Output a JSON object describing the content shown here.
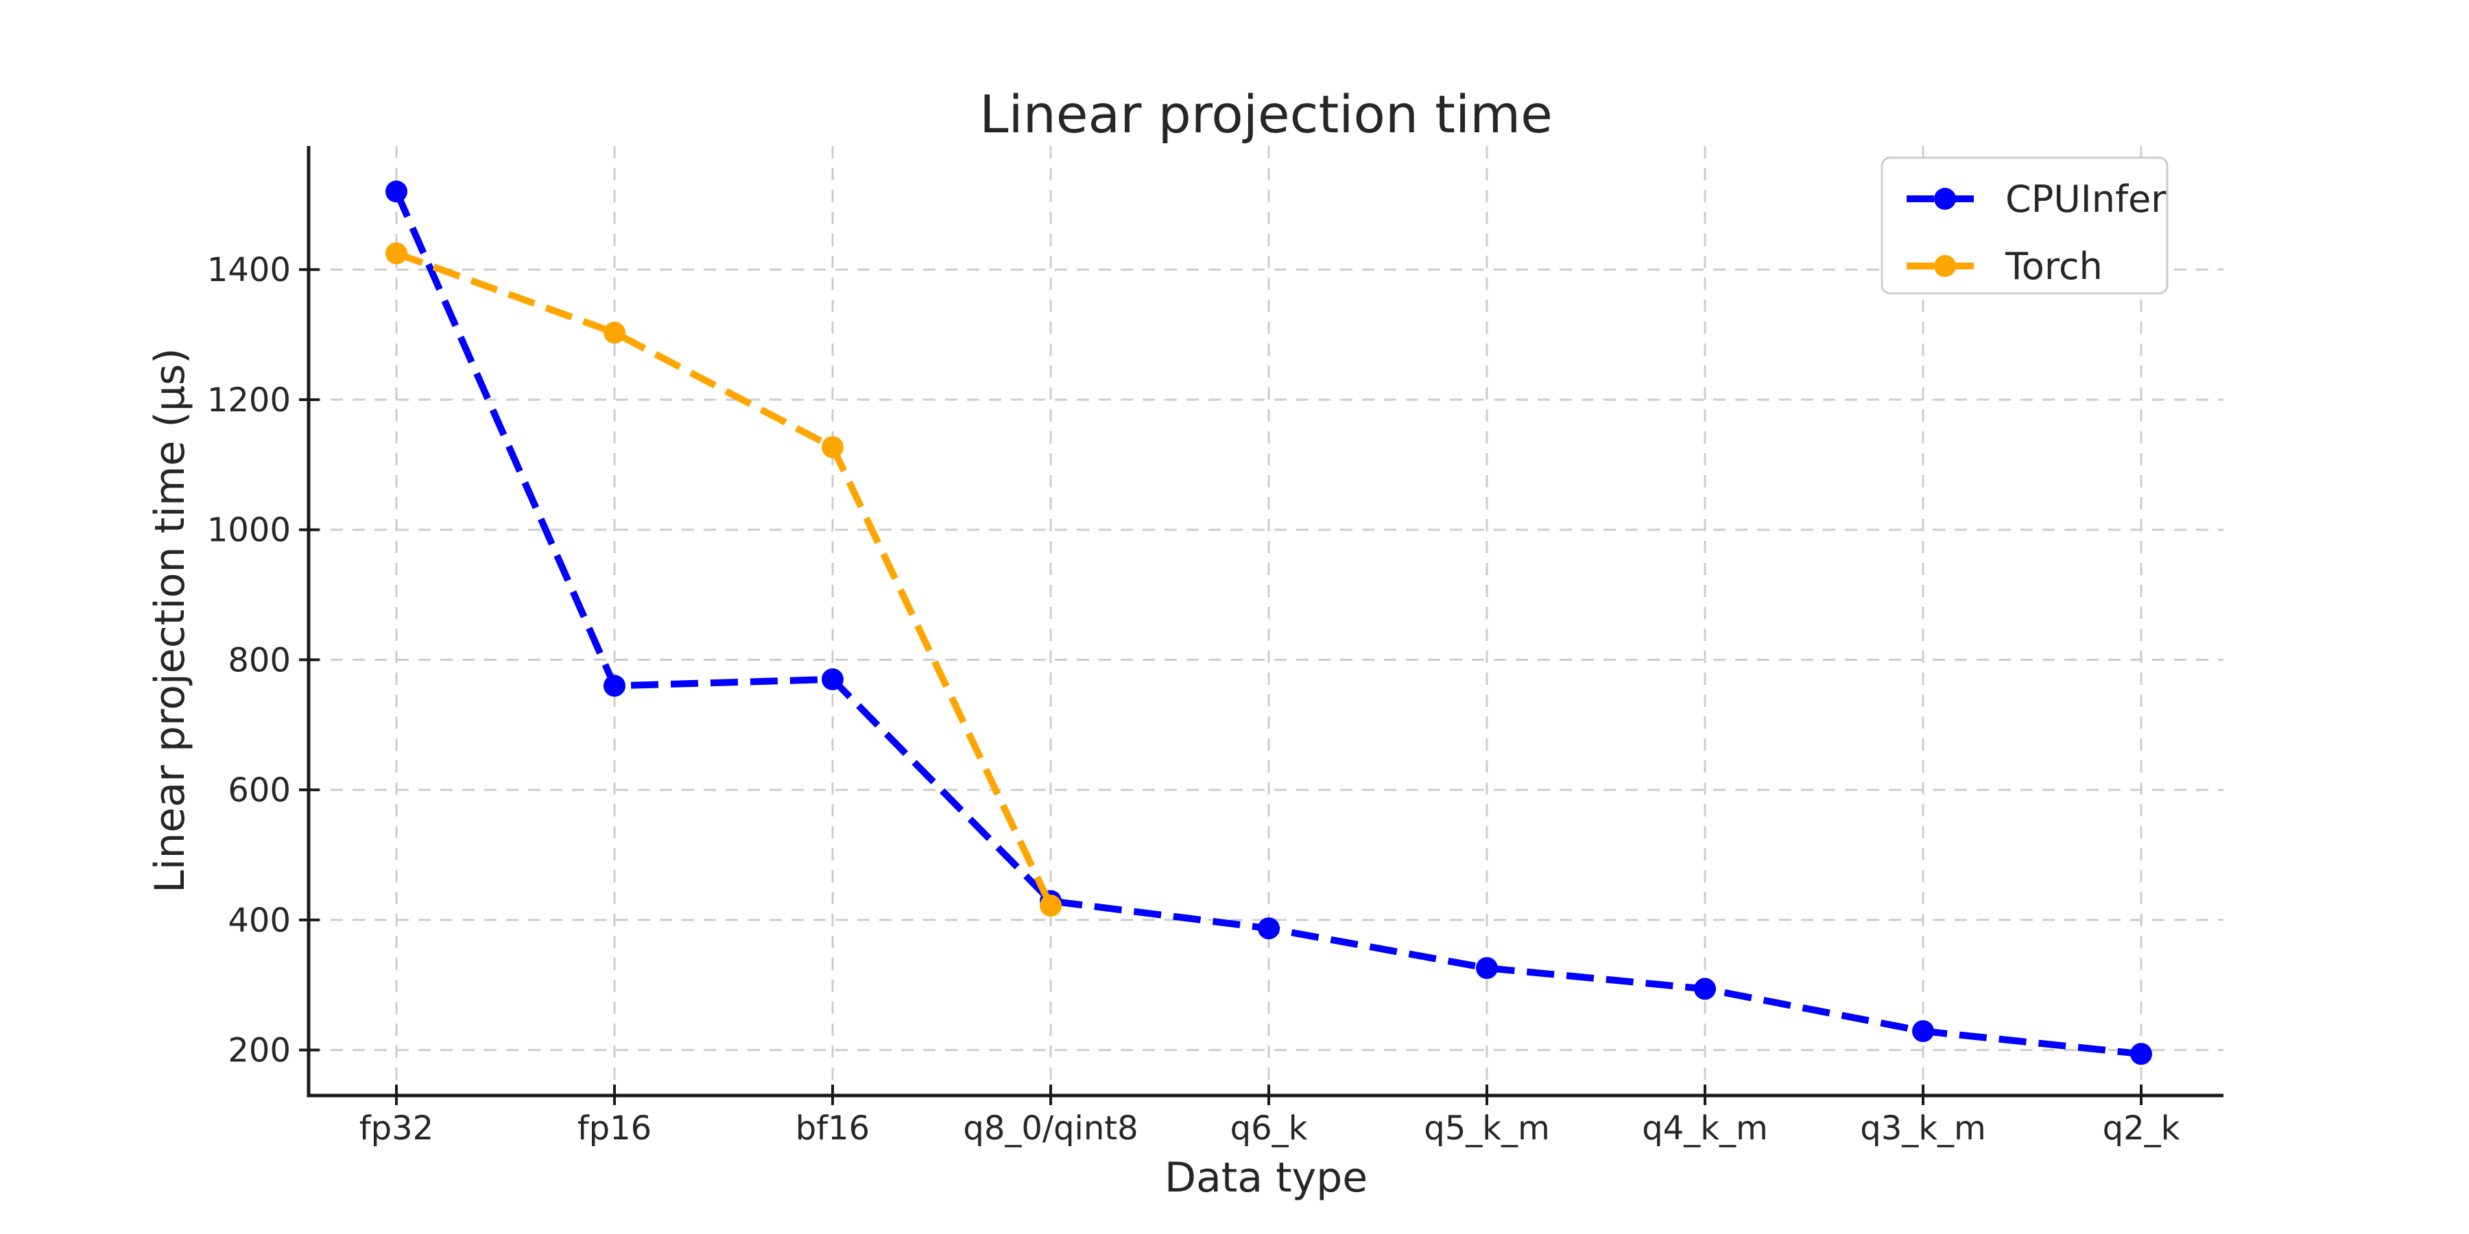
{
  "page": {
    "background": "#ffffff"
  },
  "chart_data": {
    "type": "line",
    "title": "Linear projection time",
    "xlabel": "Data type",
    "ylabel": "Linear projection time (μs)",
    "categories": [
      "fp32",
      "fp16",
      "bf16",
      "q8_0/qint8",
      "q6_k",
      "q5_k_m",
      "q4_k_m",
      "q3_k_m",
      "q2_k"
    ],
    "series": [
      {
        "name": "CPUInfer",
        "color": "#0000ff",
        "linestyle": "dashed",
        "marker": "circle",
        "values": [
          1520,
          760,
          770,
          429,
          387,
          326,
          294,
          229,
          194
        ]
      },
      {
        "name": "Torch",
        "color": "#ffa500",
        "linestyle": "dashed",
        "marker": "circle",
        "values": [
          1425,
          1303,
          1127,
          422,
          null,
          null,
          null,
          null,
          null
        ]
      }
    ],
    "yticks": [
      200,
      400,
      600,
      800,
      1000,
      1200,
      1400
    ],
    "ylim": [
      130,
      1590
    ],
    "grid": {
      "show": true,
      "style": "dashed",
      "color": "#cccccc"
    },
    "legend": {
      "position": "upper right",
      "items": [
        "CPUInfer",
        "Torch"
      ]
    },
    "axis_color": "#1a1a1a",
    "text_color": "#262626"
  }
}
